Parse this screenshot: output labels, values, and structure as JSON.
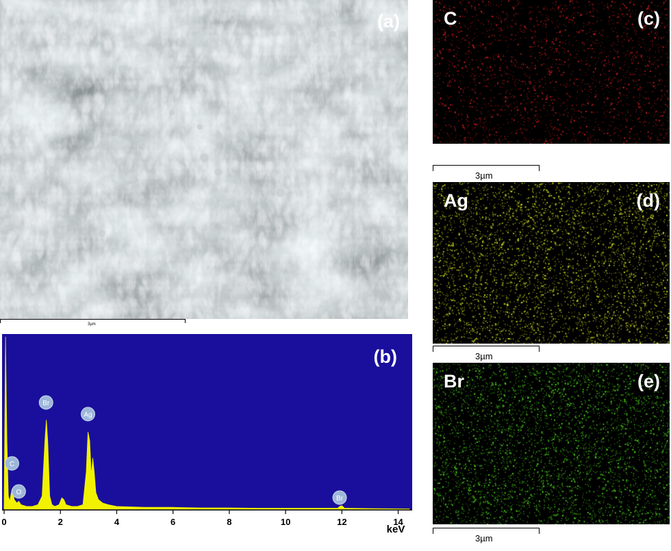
{
  "panel_a": {
    "label": "(a)",
    "scale_bar_label": "3µm"
  },
  "panel_b": {
    "label": "(b)",
    "colors": {
      "background": "#1a0f9c",
      "spectrum": "#f2f200",
      "marker": "#9db7d9"
    }
  },
  "maps": [
    {
      "id": "c",
      "element": "C",
      "label": "(c)",
      "dot_color": "#d81e1e",
      "scale_bar_label": "3µm"
    },
    {
      "id": "d",
      "element": "Ag",
      "label": "(d)",
      "dot_color": "#d4e020",
      "scale_bar_label": "3µm"
    },
    {
      "id": "e",
      "element": "Br",
      "label": "(e)",
      "dot_color": "#4cd61c",
      "scale_bar_label": "3µm"
    }
  ],
  "chart_data": {
    "type": "line",
    "title": "",
    "xlabel": "keV",
    "ylabel": "",
    "xlim": [
      0,
      14.4
    ],
    "ylim": [
      0,
      100
    ],
    "x_ticks": [
      0,
      2,
      4,
      6,
      8,
      10,
      12,
      14
    ],
    "y_ticks": [],
    "grid": false,
    "series": [
      {
        "x": [
          0.0,
          0.05,
          0.1,
          0.15,
          0.2,
          0.28,
          0.36,
          0.45,
          0.52,
          0.6,
          0.8,
          1.0,
          1.2,
          1.35,
          1.45,
          1.5,
          1.55,
          1.62,
          1.7,
          1.8,
          1.95,
          2.05,
          2.12,
          2.2,
          2.4,
          2.6,
          2.8,
          2.92,
          2.98,
          3.04,
          3.1,
          3.15,
          3.2,
          3.26,
          3.35,
          3.5,
          3.7,
          4.0,
          5.0,
          6.0,
          7.0,
          8.0,
          9.0,
          10.0,
          11.0,
          11.85,
          11.92,
          12.0,
          12.1,
          13.0,
          14.4
        ],
        "y": [
          2,
          100,
          40,
          8,
          5,
          12,
          6,
          4,
          5,
          3,
          2,
          2,
          3,
          8,
          40,
          52,
          40,
          8,
          3,
          2,
          3,
          7,
          6,
          3,
          2,
          2,
          3,
          22,
          45,
          40,
          20,
          30,
          22,
          10,
          6,
          4,
          3,
          2,
          1.5,
          1.5,
          1.2,
          1.2,
          1,
          1,
          1,
          1,
          2,
          2.5,
          1,
          0.8,
          0.6
        ]
      }
    ],
    "annotations": [
      {
        "text": "C",
        "x": 0.28
      },
      {
        "text": "O",
        "x": 0.52
      },
      {
        "text": "Br",
        "x": 1.49
      },
      {
        "text": "Ag",
        "x": 2.98
      },
      {
        "text": "Br",
        "x": 11.92
      }
    ]
  }
}
